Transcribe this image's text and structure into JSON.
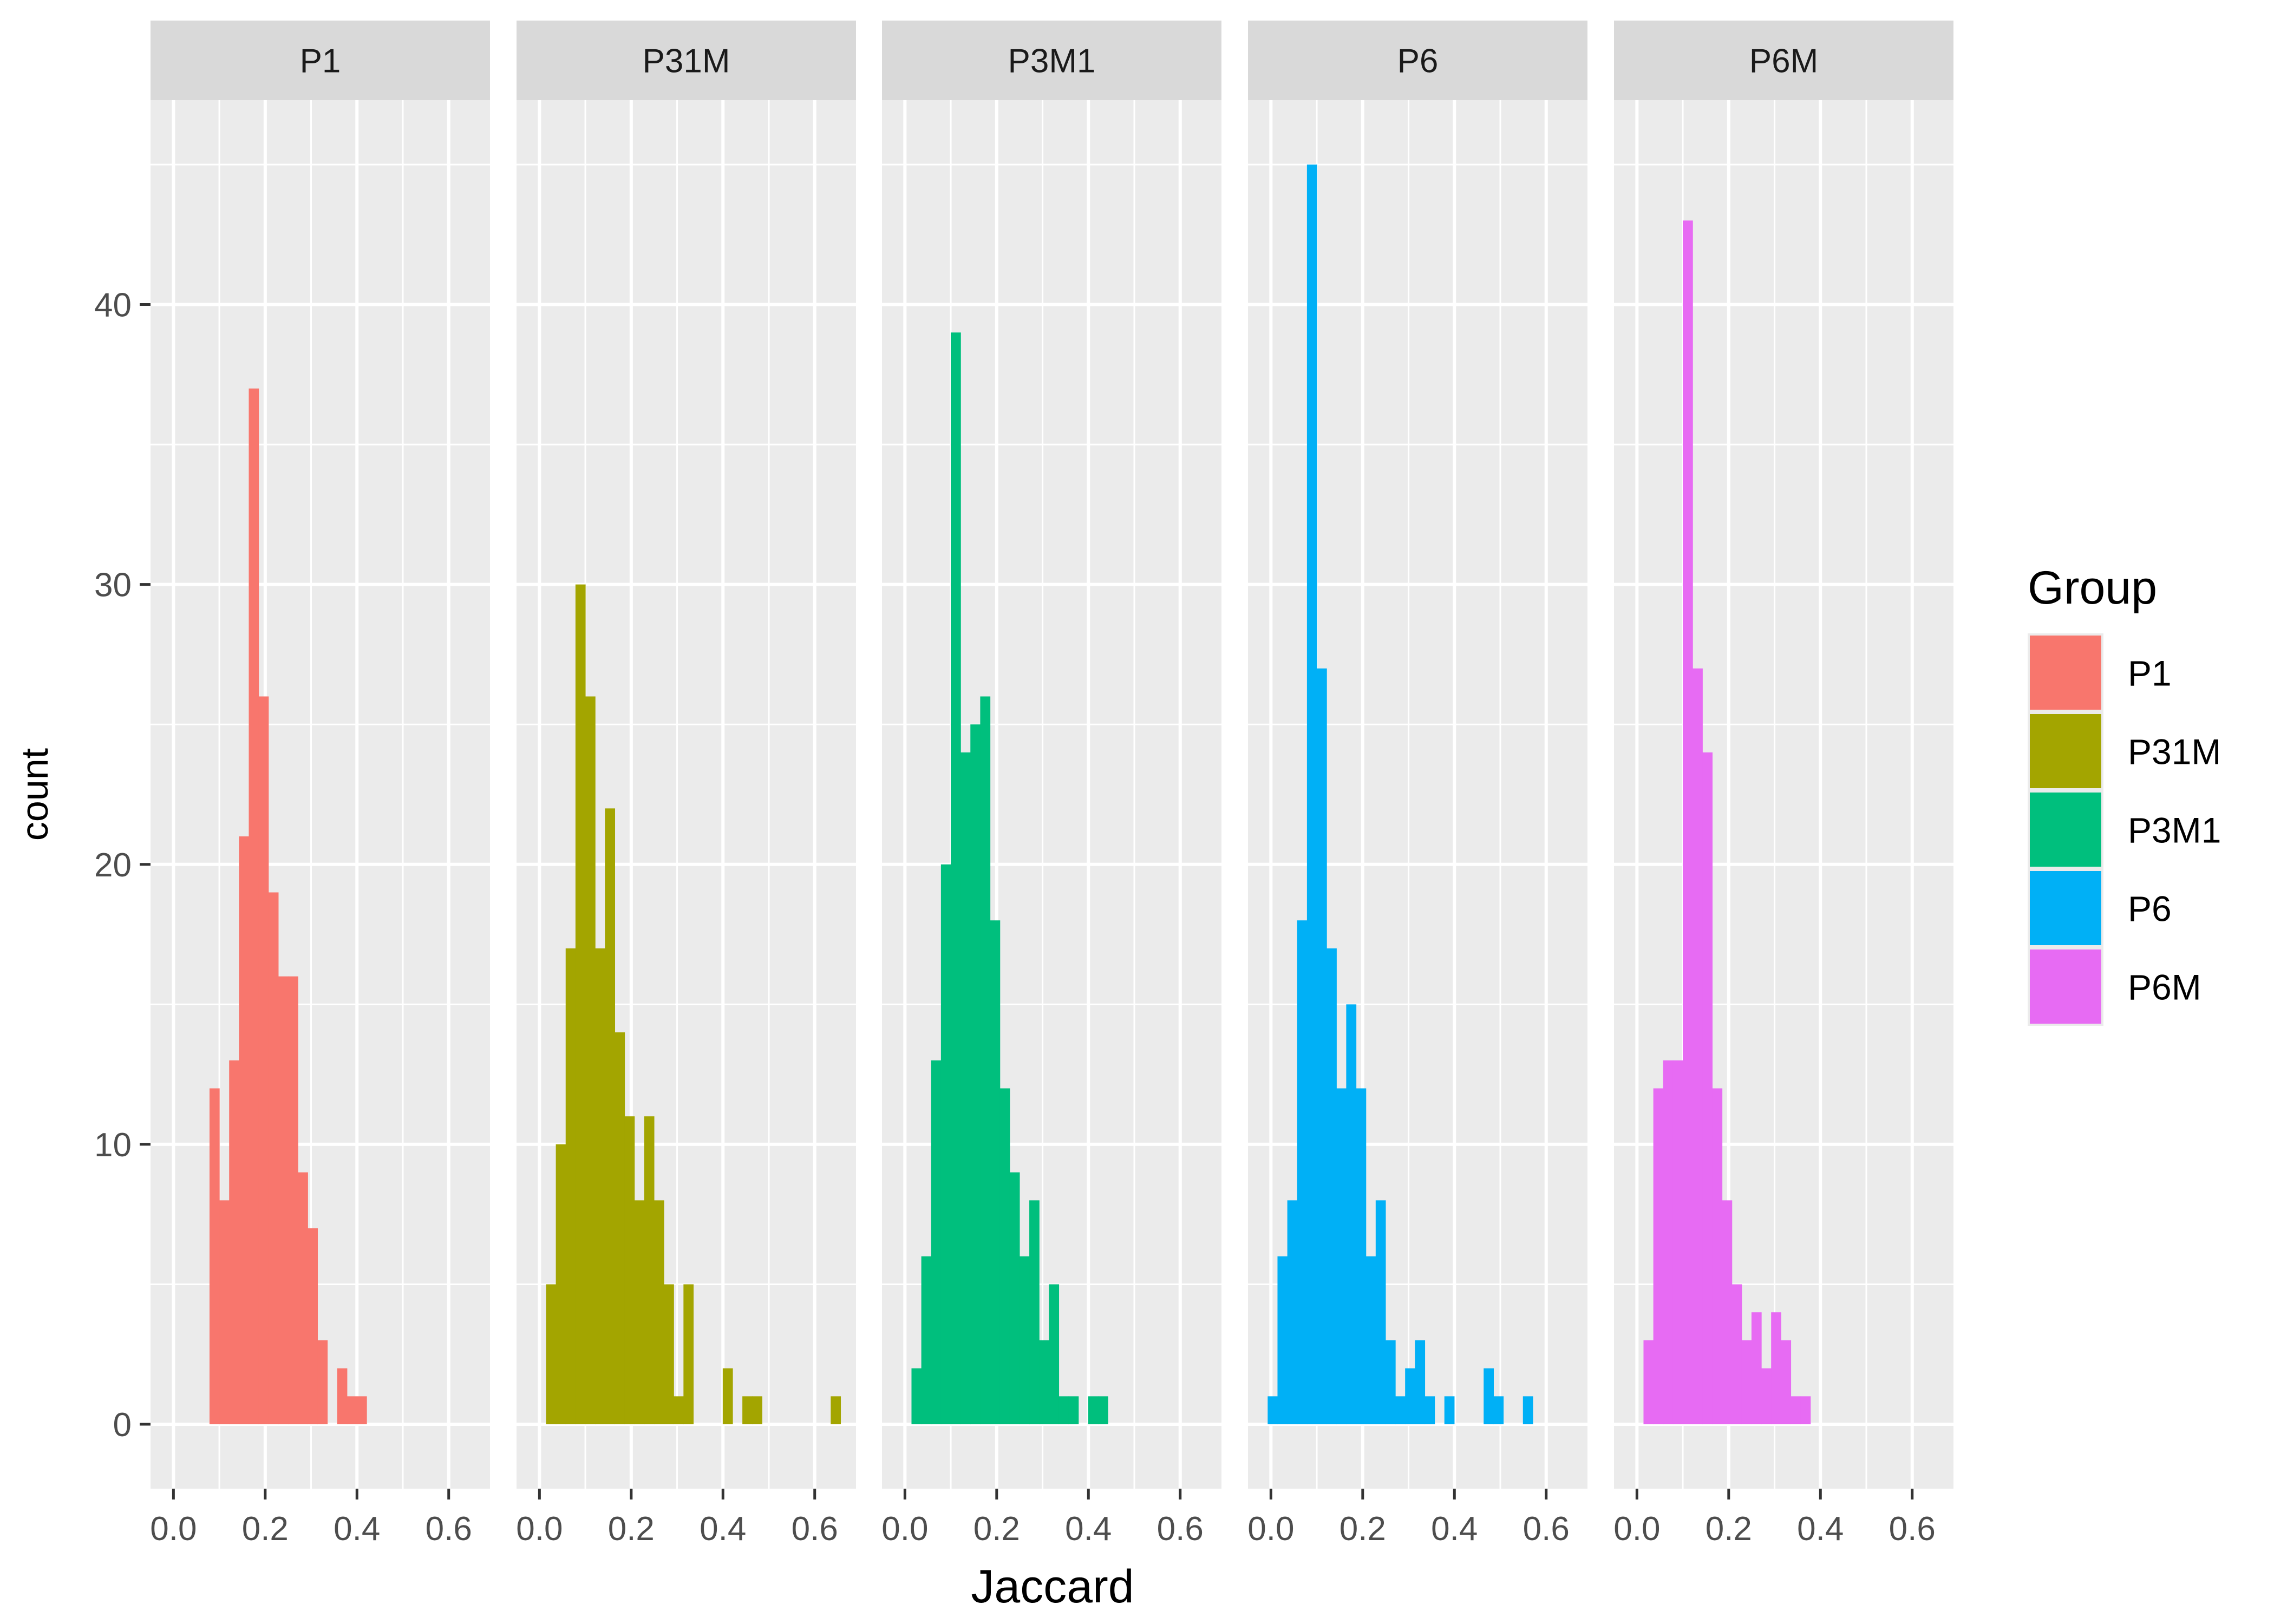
{
  "chart_data": {
    "type": "bar",
    "xlabel": "Jaccard",
    "ylabel": "count",
    "xlim": [
      -0.05,
      0.69
    ],
    "ylim": [
      -2.3,
      47.3
    ],
    "x_ticks": [
      0.0,
      0.2,
      0.4,
      0.6
    ],
    "x_tick_labels": [
      "0.0",
      "0.2",
      "0.4",
      "0.6"
    ],
    "y_ticks": [
      0,
      10,
      20,
      30,
      40
    ],
    "y_tick_labels": [
      "0",
      "10",
      "20",
      "30",
      "40"
    ],
    "bin_width": 0.0214,
    "grid": true,
    "legend": {
      "title": "Group",
      "position": "right",
      "entries": [
        "P1",
        "P31M",
        "P3M1",
        "P6",
        "P6M"
      ]
    },
    "colors": {
      "P1": "#F8766D",
      "P31M": "#A3A500",
      "P3M1": "#00BF7D",
      "P6": "#00B0F6",
      "P6M": "#E76BF3",
      "panel_bg": "#EBEBEB",
      "strip_bg": "#D9D9D9",
      "grid": "#FFFFFF"
    },
    "panels": [
      {
        "name": "P1",
        "bin_start": 0.0786,
        "counts": [
          12,
          8,
          13,
          21,
          37,
          26,
          19,
          16,
          16,
          9,
          7,
          3,
          0,
          2,
          1,
          1
        ]
      },
      {
        "name": "P31M",
        "bin_start": 0.0143,
        "counts": [
          5,
          10,
          17,
          30,
          26,
          17,
          22,
          14,
          11,
          8,
          11,
          8,
          5,
          1,
          5,
          0,
          0,
          0,
          2,
          0,
          1,
          1,
          0,
          0,
          0,
          0,
          0,
          0,
          0,
          1
        ]
      },
      {
        "name": "P3M1",
        "bin_start": 0.0143,
        "counts": [
          2,
          6,
          13,
          20,
          39,
          24,
          25,
          26,
          18,
          12,
          9,
          6,
          8,
          3,
          5,
          1,
          1,
          0,
          1,
          1
        ]
      },
      {
        "name": "P6",
        "bin_start": -0.0071,
        "counts": [
          1,
          6,
          8,
          18,
          45,
          27,
          17,
          12,
          15,
          12,
          6,
          8,
          3,
          1,
          2,
          3,
          1,
          0,
          1,
          0,
          0,
          0,
          2,
          1,
          0,
          0,
          1
        ]
      },
      {
        "name": "P6M",
        "bin_start": 0.0143,
        "counts": [
          3,
          12,
          13,
          13,
          43,
          27,
          24,
          12,
          8,
          5,
          3,
          4,
          2,
          4,
          3,
          1,
          1
        ]
      }
    ]
  }
}
